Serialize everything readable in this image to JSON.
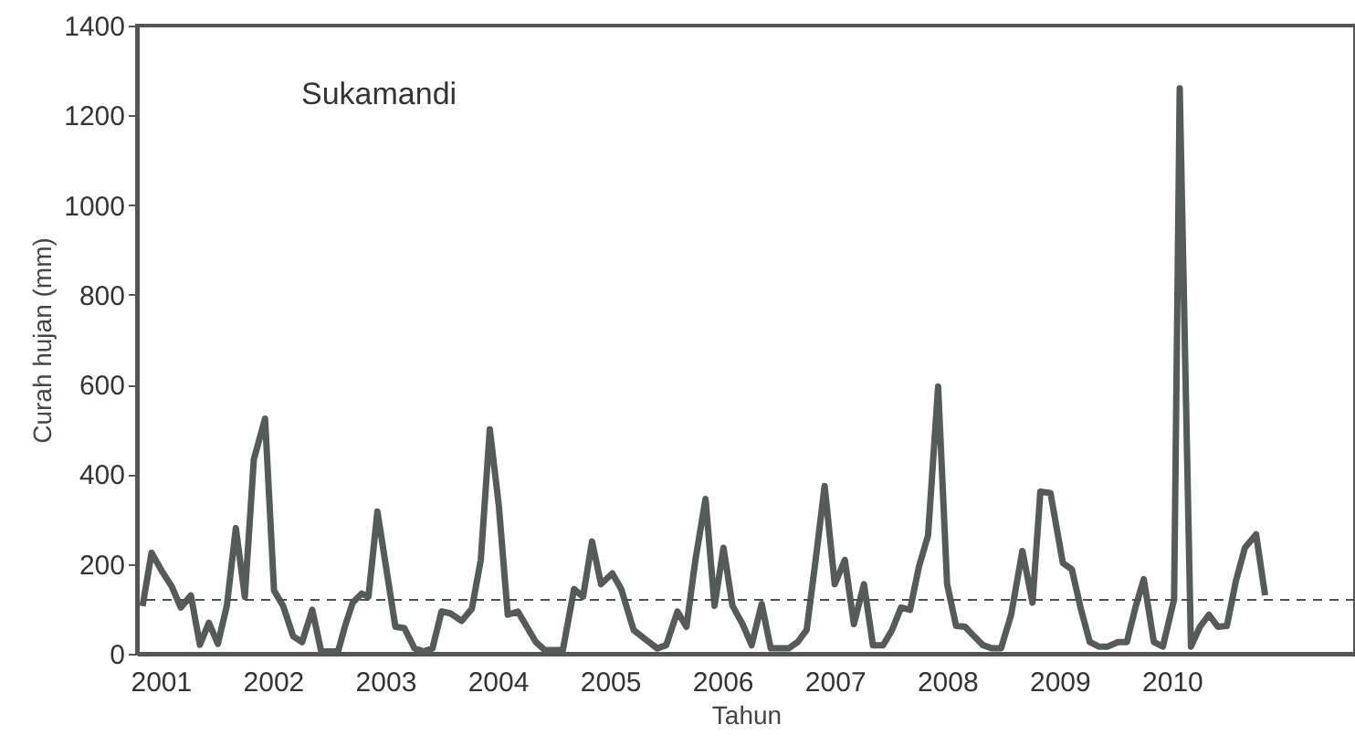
{
  "chart_data": {
    "type": "line",
    "xlabel": "Tahun",
    "ylabel": "Curah hujan (mm)",
    "annotations": [
      "Sukamandi"
    ],
    "xlim": [
      2000.79,
      2011.63
    ],
    "xticks": [
      2001,
      2002,
      2003,
      2004,
      2005,
      2006,
      2007,
      2008,
      2009,
      2010
    ],
    "ylim": [
      0,
      1400
    ],
    "yticks": [
      0,
      200,
      400,
      600,
      800,
      1000,
      1200,
      1400
    ],
    "grid": false,
    "marker": "none",
    "line_style": "solid",
    "ref_lines": [
      {
        "axis": "y",
        "value": 120,
        "color": "#4a5058",
        "line_style": "dashed"
      }
    ],
    "series": [
      {
        "color": "#555a5a",
        "x": [
          2000.84,
          2000.92,
          2001.01,
          2001.1,
          2001.18,
          2001.27,
          2001.35,
          2001.43,
          2001.51,
          2001.59,
          2001.67,
          2001.75,
          2001.83,
          2001.93,
          2002.01,
          2002.09,
          2002.18,
          2002.26,
          2002.35,
          2002.43,
          2002.5,
          2002.58,
          2002.64,
          2002.71,
          2002.79,
          2002.85,
          2002.93,
          2003.01,
          2003.09,
          2003.17,
          2003.26,
          2003.34,
          2003.42,
          2003.5,
          2003.58,
          2003.68,
          2003.77,
          2003.85,
          2003.93,
          2004.01,
          2004.09,
          2004.18,
          2004.26,
          2004.34,
          2004.42,
          2004.5,
          2004.58,
          2004.68,
          2004.76,
          2004.84,
          2004.92,
          2005.02,
          2005.1,
          2005.21,
          2005.31,
          2005.42,
          2005.5,
          2005.6,
          2005.68,
          2005.76,
          2005.85,
          2005.93,
          2006.01,
          2006.09,
          2006.18,
          2006.26,
          2006.35,
          2006.43,
          2006.51,
          2006.59,
          2006.67,
          2006.75,
          2006.83,
          2006.91,
          2007.0,
          2007.09,
          2007.17,
          2007.26,
          2007.34,
          2007.43,
          2007.51,
          2007.59,
          2007.67,
          2007.75,
          2007.83,
          2007.92,
          2008.0,
          2008.08,
          2008.16,
          2008.24,
          2008.32,
          2008.4,
          2008.48,
          2008.57,
          2008.67,
          2008.76,
          2008.83,
          2008.92,
          2009.03,
          2009.11,
          2009.19,
          2009.27,
          2009.35,
          2009.43,
          2009.52,
          2009.6,
          2009.68,
          2009.75,
          2009.84,
          2009.92,
          2010.02,
          2010.07,
          2010.17,
          2010.25,
          2010.33,
          2010.41,
          2010.49,
          2010.57,
          2010.65,
          2010.75,
          2010.83
        ],
        "values": [
          106,
          225,
          185,
          150,
          103,
          130,
          20,
          69,
          22,
          107,
          280,
          127,
          433,
          524,
          141,
          107,
          39,
          26,
          98,
          5,
          5,
          5,
          60,
          114,
          134,
          127,
          317,
          188,
          60,
          57,
          12,
          5,
          12,
          94,
          90,
          73,
          100,
          209,
          500,
          331,
          87,
          94,
          60,
          26,
          8,
          8,
          8,
          144,
          127,
          250,
          155,
          179,
          144,
          53,
          33,
          12,
          19,
          94,
          60,
          209,
          345,
          107,
          236,
          107,
          66,
          19,
          111,
          12,
          12,
          12,
          26,
          53,
          209,
          374,
          155,
          209,
          66,
          155,
          19,
          19,
          53,
          103,
          98,
          195,
          263,
          595,
          155,
          62,
          60,
          39,
          19,
          12,
          12,
          87,
          229,
          114,
          361,
          358,
          202,
          188,
          100,
          26,
          16,
          16,
          26,
          26,
          107,
          166,
          26,
          16,
          121,
          1260,
          16,
          60,
          87,
          60,
          62,
          162,
          236,
          266,
          130
        ]
      }
    ]
  }
}
